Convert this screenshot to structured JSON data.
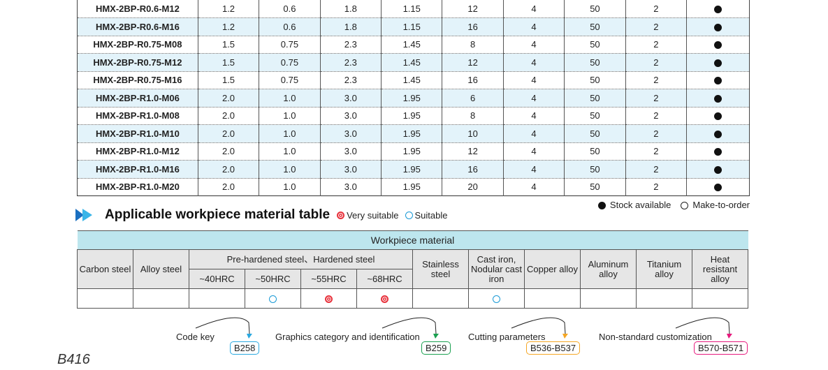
{
  "spec_rows": [
    [
      "HMX-2BP-R0.6-M12",
      "1.2",
      "0.6",
      "1.8",
      "1.15",
      "12",
      "4",
      "50",
      "2"
    ],
    [
      "HMX-2BP-R0.6-M16",
      "1.2",
      "0.6",
      "1.8",
      "1.15",
      "16",
      "4",
      "50",
      "2"
    ],
    [
      "HMX-2BP-R0.75-M08",
      "1.5",
      "0.75",
      "2.3",
      "1.45",
      "8",
      "4",
      "50",
      "2"
    ],
    [
      "HMX-2BP-R0.75-M12",
      "1.5",
      "0.75",
      "2.3",
      "1.45",
      "12",
      "4",
      "50",
      "2"
    ],
    [
      "HMX-2BP-R0.75-M16",
      "1.5",
      "0.75",
      "2.3",
      "1.45",
      "16",
      "4",
      "50",
      "2"
    ],
    [
      "HMX-2BP-R1.0-M06",
      "2.0",
      "1.0",
      "3.0",
      "1.95",
      "6",
      "4",
      "50",
      "2"
    ],
    [
      "HMX-2BP-R1.0-M08",
      "2.0",
      "1.0",
      "3.0",
      "1.95",
      "8",
      "4",
      "50",
      "2"
    ],
    [
      "HMX-2BP-R1.0-M10",
      "2.0",
      "1.0",
      "3.0",
      "1.95",
      "10",
      "4",
      "50",
      "2"
    ],
    [
      "HMX-2BP-R1.0-M12",
      "2.0",
      "1.0",
      "3.0",
      "1.95",
      "12",
      "4",
      "50",
      "2"
    ],
    [
      "HMX-2BP-R1.0-M16",
      "2.0",
      "1.0",
      "3.0",
      "1.95",
      "16",
      "4",
      "50",
      "2"
    ],
    [
      "HMX-2BP-R1.0-M20",
      "2.0",
      "1.0",
      "3.0",
      "1.95",
      "20",
      "4",
      "50",
      "2"
    ]
  ],
  "stock_status": "stock-available",
  "legend": {
    "stock": "Stock available",
    "order": "Make-to-order"
  },
  "material": {
    "title": "Applicable workpiece material table",
    "very_suitable": "Very suitable",
    "suitable": "Suitable",
    "header": "Workpiece material",
    "group": "Pre-hardened steel、Hardened steel",
    "cols": [
      "Carbon steel",
      "Alloy steel",
      "~40HRC",
      "~50HRC",
      "~55HRC",
      "~68HRC",
      "Stainless steel",
      "Cast iron, Nodular cast iron",
      "Copper alloy",
      "Aluminum alloy",
      "Titanium alloy",
      "Heat resistant alloy"
    ],
    "ratings": [
      "",
      "",
      "",
      "suitable",
      "very",
      "very",
      "",
      "suitable",
      "",
      "",
      "",
      ""
    ]
  },
  "refs": [
    {
      "label": "Code key",
      "page": "B258",
      "color": "#29a8e0"
    },
    {
      "label": "Graphics category and identification",
      "page": "B259",
      "color": "#1aa050"
    },
    {
      "label": "Cutting parameters",
      "page": "B536-B537",
      "color": "#f5a623"
    },
    {
      "label": "Non-standard customization",
      "page": "B570-B571",
      "color": "#e6197d"
    }
  ],
  "page_number": "B416"
}
